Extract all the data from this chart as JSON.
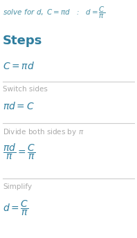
{
  "background_color": "#ffffff",
  "header_color": "#4a90a4",
  "math_color": "#2e7d9e",
  "label_color": "#aaaaaa",
  "line_color": "#cccccc",
  "header_text": "$\\it{solve\\ for\\ d,\\ C = \\pi d}$   :   $d = \\dfrac{C}{\\pi}$",
  "steps_label": "Steps",
  "step1_math": "$C = \\pi d$",
  "step2_label": "Switch sides",
  "step2_math": "$\\pi d = C$",
  "step3_label": "Divide both sides by $\\pi$",
  "step3_math": "$\\dfrac{\\pi d}{\\pi} = \\dfrac{C}{\\pi}$",
  "step4_label": "Simplify",
  "step4_math": "$d = \\dfrac{C}{\\pi}$",
  "figw": 1.98,
  "figh": 3.44,
  "dpi": 100
}
